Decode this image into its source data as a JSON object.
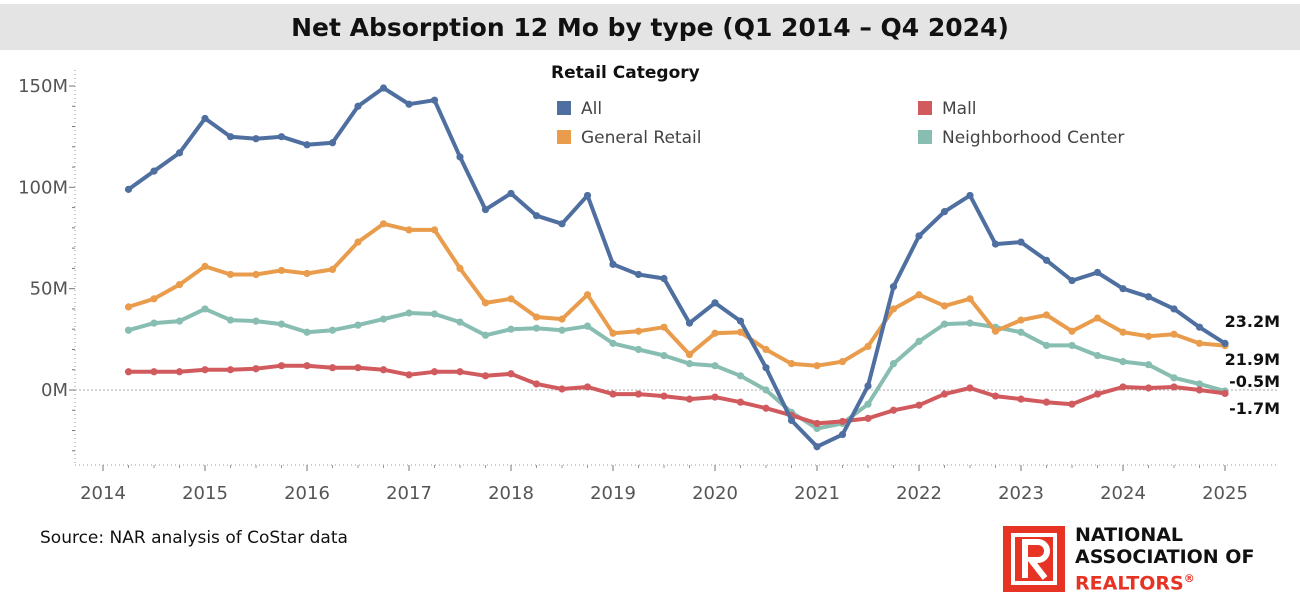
{
  "chart_data": {
    "type": "line",
    "title": "Net Absorption 12 Mo by type (Q1 2014 – Q4 2024)",
    "legend_title": "Retail Category",
    "legend_position": "top",
    "xlabel": "",
    "ylabel": "",
    "x_tick_labels": [
      "2014",
      "2015",
      "2016",
      "2017",
      "2018",
      "2019",
      "2020",
      "2021",
      "2022",
      "2023",
      "2024",
      "2025"
    ],
    "y_tick_labels": [
      "150M",
      "100M",
      "50M",
      "0M"
    ],
    "y_tick_values": [
      150,
      100,
      50,
      0
    ],
    "xlim": [
      2014,
      2025
    ],
    "ylim": [
      -35,
      155
    ],
    "units": "M",
    "x": [
      2014.25,
      2014.5,
      2014.75,
      2015,
      2015.25,
      2015.5,
      2015.75,
      2016,
      2016.25,
      2016.5,
      2016.75,
      2017,
      2017.25,
      2017.5,
      2017.75,
      2018,
      2018.25,
      2018.5,
      2018.75,
      2019,
      2019.25,
      2019.5,
      2019.75,
      2020,
      2020.25,
      2020.5,
      2020.75,
      2021,
      2021.25,
      2021.5,
      2021.75,
      2022,
      2022.25,
      2022.5,
      2022.75,
      2023,
      2023.25,
      2023.5,
      2023.75,
      2024,
      2024.25,
      2024.5,
      2024.75,
      2025
    ],
    "series": [
      {
        "name": "All",
        "color": "#4e6fa0",
        "values": [
          99,
          108,
          117,
          134,
          125,
          124,
          125,
          121,
          122,
          140,
          149,
          141,
          143,
          115,
          89,
          97,
          86,
          82,
          96,
          62,
          57,
          55,
          33,
          43,
          34,
          11,
          -15,
          -28,
          -22,
          2,
          51,
          76,
          88,
          96,
          72,
          73,
          64,
          54,
          58,
          50,
          46,
          40,
          31,
          23
        ]
      },
      {
        "name": "Mall",
        "color": "#d05a5d",
        "values": [
          9,
          9,
          9,
          10,
          10,
          10.5,
          12,
          12,
          11,
          11,
          10,
          7.5,
          9,
          9,
          7,
          8,
          3,
          0.5,
          1.5,
          -2,
          -2,
          -3,
          -4.5,
          -3.5,
          -6,
          -9,
          -12.5,
          -16.5,
          -15.5,
          -14,
          -10,
          -7.5,
          -2,
          1,
          -3,
          -4.5,
          -6,
          -7,
          -2,
          1.5,
          1,
          1.5,
          0,
          -1.7
        ]
      },
      {
        "name": "General Retail",
        "color": "#e99c4c",
        "values": [
          41,
          45,
          52,
          61,
          57,
          57,
          59,
          57.5,
          59.5,
          73,
          82,
          79,
          79,
          60,
          43,
          45,
          36,
          35,
          47,
          28,
          29,
          31,
          17.5,
          28,
          28.5,
          20,
          13,
          12,
          14,
          21.5,
          40,
          47,
          41.5,
          45,
          29,
          34.5,
          37,
          29,
          35.5,
          28.5,
          26.5,
          27.5,
          23,
          21.9
        ]
      },
      {
        "name": "Neighborhood Center",
        "color": "#88bdb1",
        "values": [
          29.5,
          33,
          34,
          40,
          34.5,
          34,
          32.5,
          28.5,
          29.5,
          32,
          35,
          38,
          37.5,
          33.5,
          27,
          30,
          30.5,
          29.5,
          31.5,
          23,
          20,
          17,
          13,
          12,
          7,
          0,
          -11,
          -19,
          -16.5,
          -7,
          13,
          24,
          32.5,
          33,
          31,
          28.5,
          22,
          22,
          17,
          14,
          12.5,
          6,
          3,
          -0.5
        ]
      }
    ],
    "end_labels": [
      "23.2M",
      "21.9M",
      "-0.5M",
      "-1.7M"
    ]
  },
  "source": "Source: NAR analysis of CoStar data",
  "logo": {
    "line1": "NATIONAL",
    "line2": "ASSOCIATION OF",
    "line3": "REALTORS",
    "registered": "®",
    "color": "#e63323"
  }
}
